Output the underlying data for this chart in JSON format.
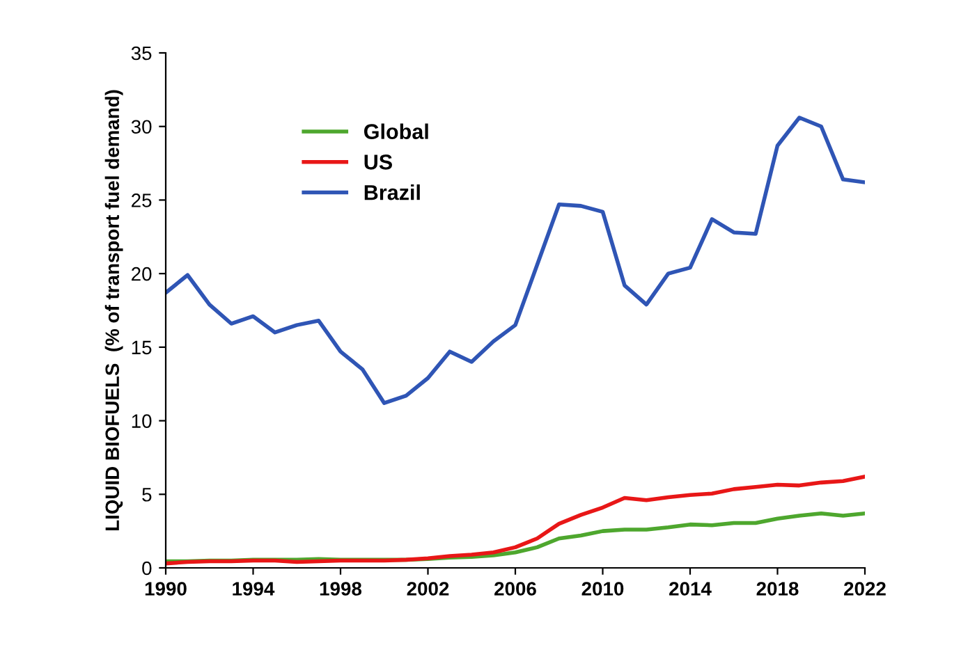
{
  "chart_data": {
    "type": "line",
    "ylabel": "LIQUID BIOFUELS  (% of transport fuel demand)",
    "x": [
      1990,
      1991,
      1992,
      1993,
      1994,
      1995,
      1996,
      1997,
      1998,
      1999,
      2000,
      2001,
      2002,
      2003,
      2004,
      2005,
      2006,
      2007,
      2008,
      2009,
      2010,
      2011,
      2012,
      2013,
      2014,
      2015,
      2016,
      2017,
      2018,
      2019,
      2020,
      2021,
      2022
    ],
    "series": [
      {
        "name": "Global",
        "color": "#4ea72e",
        "values": [
          0.45,
          0.45,
          0.5,
          0.5,
          0.55,
          0.55,
          0.55,
          0.6,
          0.55,
          0.55,
          0.55,
          0.55,
          0.6,
          0.7,
          0.75,
          0.85,
          1.05,
          1.4,
          2.0,
          2.2,
          2.5,
          2.6,
          2.6,
          2.75,
          2.95,
          2.9,
          3.05,
          3.05,
          3.35,
          3.55,
          3.7,
          3.55,
          3.7
        ]
      },
      {
        "name": "US",
        "color": "#e81717",
        "values": [
          0.3,
          0.4,
          0.45,
          0.45,
          0.5,
          0.5,
          0.4,
          0.45,
          0.5,
          0.5,
          0.5,
          0.55,
          0.65,
          0.8,
          0.9,
          1.05,
          1.4,
          2.0,
          3.0,
          3.6,
          4.1,
          4.75,
          4.6,
          4.8,
          4.95,
          5.05,
          5.35,
          5.5,
          5.65,
          5.6,
          5.8,
          5.9,
          6.2
        ]
      },
      {
        "name": "Brazil",
        "color": "#2f55b5",
        "values": [
          18.7,
          19.9,
          17.9,
          16.6,
          17.1,
          16.0,
          16.5,
          16.8,
          14.7,
          13.5,
          11.2,
          11.7,
          12.9,
          14.7,
          14.0,
          15.4,
          16.5,
          20.6,
          24.7,
          24.6,
          24.2,
          19.2,
          17.9,
          20.0,
          20.4,
          23.7,
          22.8,
          22.7,
          28.7,
          30.6,
          30.0,
          26.4,
          26.2
        ]
      }
    ],
    "xlim": [
      1990,
      2022
    ],
    "xticks": [
      1990,
      1994,
      1998,
      2002,
      2006,
      2010,
      2014,
      2018,
      2022
    ],
    "ylim": [
      0,
      35
    ],
    "yticks": [
      0,
      5,
      10,
      15,
      20,
      25,
      30,
      35
    ],
    "grid": false,
    "legend": "top left",
    "marker": "none",
    "line_style": "solid"
  }
}
